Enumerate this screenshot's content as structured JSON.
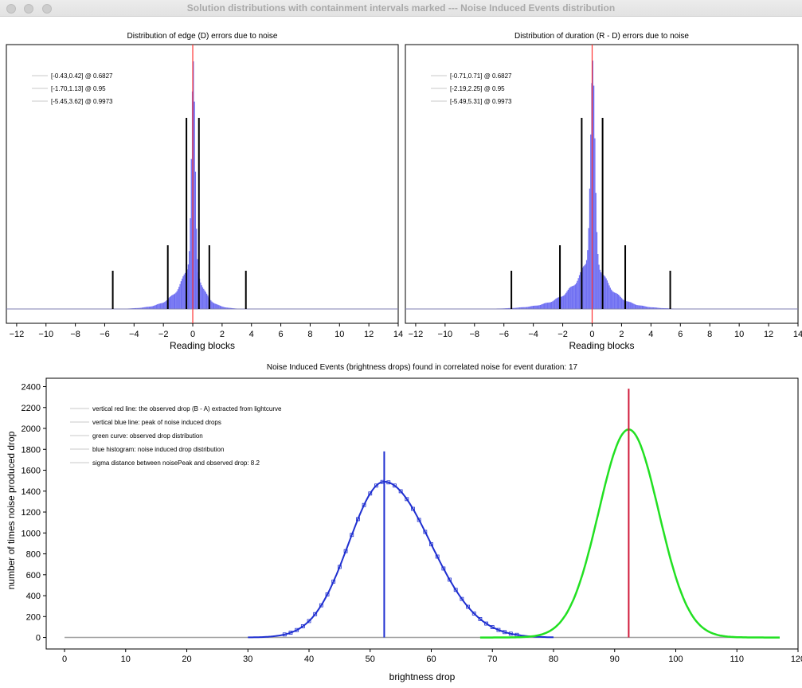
{
  "window": {
    "title": "Solution distributions with containment intervals marked --- Noise Induced Events distribution"
  },
  "colors": {
    "histogram": "#6f6ff2",
    "red_line": "#ff3333",
    "interval_line": "#000000",
    "blue_curve": "#1f2fd0",
    "green_curve": "#22e022",
    "observed_red": "#d01a3a",
    "zero_line": "#a0a0a0"
  },
  "chart_data": [
    {
      "type": "histogram",
      "title": "Distribution of edge (D) errors due to noise",
      "xlabel": "Reading blocks",
      "ylabel": "",
      "xlim": [
        -12.7,
        14
      ],
      "xticks": [
        -12,
        -10,
        -8,
        -6,
        -4,
        -2,
        0,
        2,
        4,
        6,
        8,
        10,
        12,
        14
      ],
      "legend_position": "top-left",
      "legend": [
        "[-0.43,0.42] @ 0.6827",
        "[-1.70,1.13] @ 0.95",
        "[-5.45,3.62] @ 0.9973"
      ],
      "intervals": [
        {
          "lo": -0.43,
          "hi": 0.42,
          "level": 0.6827
        },
        {
          "lo": -1.7,
          "hi": 1.13,
          "level": 0.95
        },
        {
          "lo": -5.45,
          "hi": 3.62,
          "level": 0.9973
        }
      ],
      "red_line_x": 0,
      "distribution_shape": {
        "center": 0,
        "core_width": 0.12,
        "left_tail": 0.9,
        "right_tail": 0.6
      }
    },
    {
      "type": "histogram",
      "title": "Distribution of duration (R - D) errors due to noise",
      "xlabel": "Reading blocks",
      "ylabel": "",
      "xlim": [
        -12.7,
        14
      ],
      "xticks": [
        -12,
        -10,
        -8,
        -6,
        -4,
        -2,
        0,
        2,
        4,
        6,
        8,
        10,
        12,
        14
      ],
      "legend_position": "top-left",
      "legend": [
        "[-0.71,0.71] @ 0.6827",
        "[-2.19,2.25] @ 0.95",
        "[-5.49,5.31] @ 0.9973"
      ],
      "intervals": [
        {
          "lo": -0.71,
          "hi": 0.71,
          "level": 0.6827
        },
        {
          "lo": -2.19,
          "hi": 2.25,
          "level": 0.95
        },
        {
          "lo": -5.49,
          "hi": 5.31,
          "level": 0.9973
        }
      ],
      "red_line_x": 0,
      "distribution_shape": {
        "center": 0,
        "core_width": 0.15,
        "left_tail": 1.3,
        "right_tail": 1.1
      }
    },
    {
      "type": "line",
      "title": "Noise Induced Events (brightness drops) found in correlated noise for event duration: 17",
      "xlabel": "brightness drop",
      "ylabel": "number of times noise produced drop",
      "xlim": [
        -3,
        120
      ],
      "ylim": [
        -110,
        2480
      ],
      "xticks": [
        0,
        10,
        20,
        30,
        40,
        50,
        60,
        70,
        80,
        90,
        100,
        110,
        120
      ],
      "yticks": [
        0,
        200,
        400,
        600,
        800,
        1000,
        1200,
        1400,
        1600,
        1800,
        2000,
        2200,
        2400
      ],
      "legend_position": "top-left",
      "legend": [
        "vertical red line: the observed drop (B - A) extracted from lightcurve",
        "vertical blue line: peak of noise induced drops",
        "green curve: observed drop distribution",
        "blue histogram: noise induced drop distribution",
        "sigma distance between noisePeak and observed drop: 8.2"
      ],
      "noise_distribution": {
        "peak_x": 52.3,
        "peak_y": 1490,
        "sigma_left": 5.8,
        "sigma_right": 7.6
      },
      "observed_distribution": {
        "peak_x": 92.3,
        "peak_y": 1990,
        "sigma": 4.9
      },
      "red_line": {
        "x": 92.3,
        "y_top": 2380
      },
      "blue_line": {
        "x": 52.3,
        "y_top": 1780
      },
      "baseline_x_range": [
        0,
        117
      ]
    }
  ]
}
